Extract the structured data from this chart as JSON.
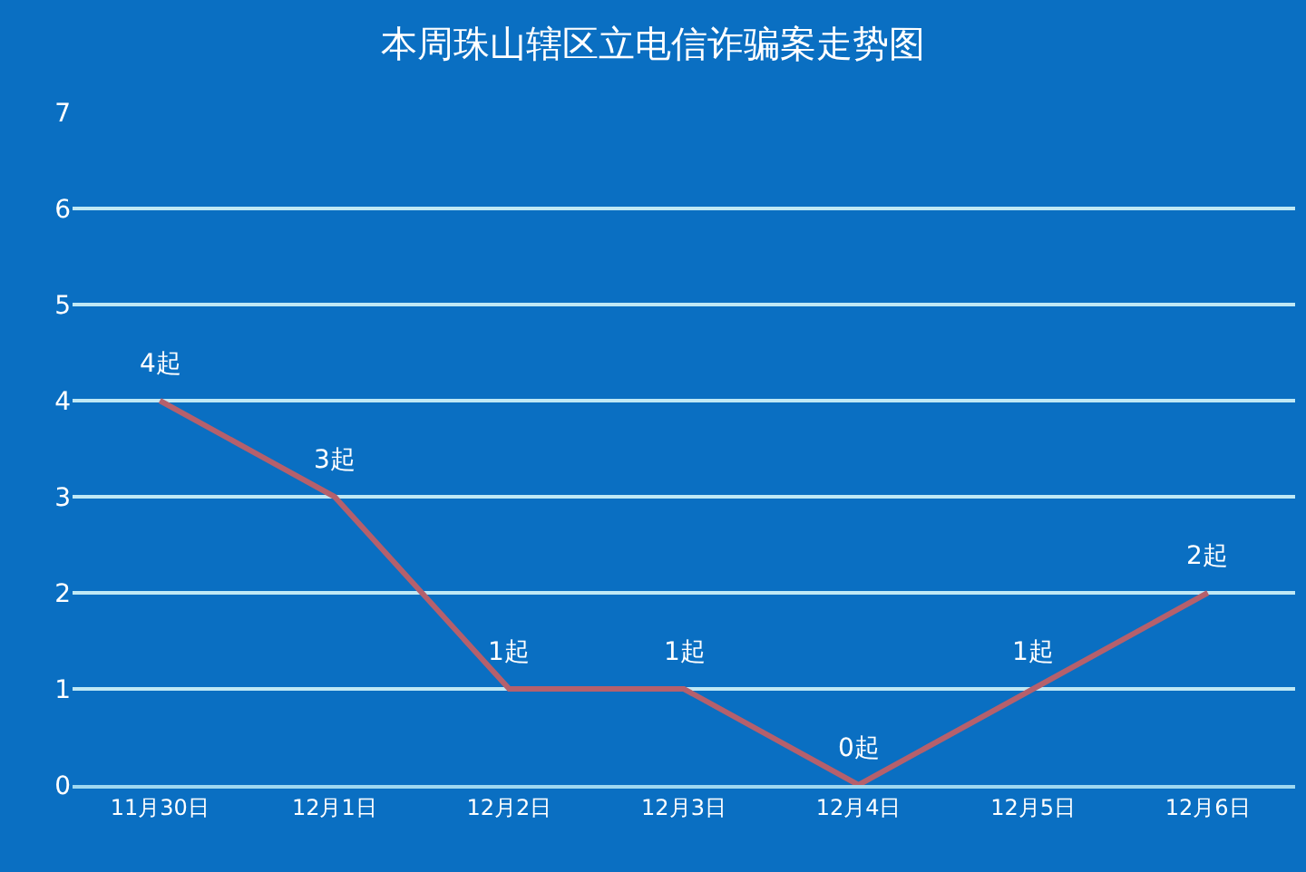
{
  "chart_data": {
    "type": "line",
    "title": "本周珠山辖区立电信诈骗案走势图",
    "categories": [
      "11月30日",
      "12月1日",
      "12月2日",
      "12月3日",
      "12月4日",
      "12月5日",
      "12月6日"
    ],
    "series": [
      {
        "color": "#b5606c",
        "values": [
          4,
          3,
          1,
          1,
          0,
          1,
          2
        ],
        "value_labels": [
          "4起",
          "3起",
          "1起",
          "1起",
          "0起",
          "1起",
          "2起"
        ]
      }
    ],
    "ylim": [
      0,
      7
    ],
    "yticks": [
      0,
      1,
      2,
      3,
      4,
      5,
      6,
      7
    ],
    "grid": "y",
    "legend": false
  }
}
